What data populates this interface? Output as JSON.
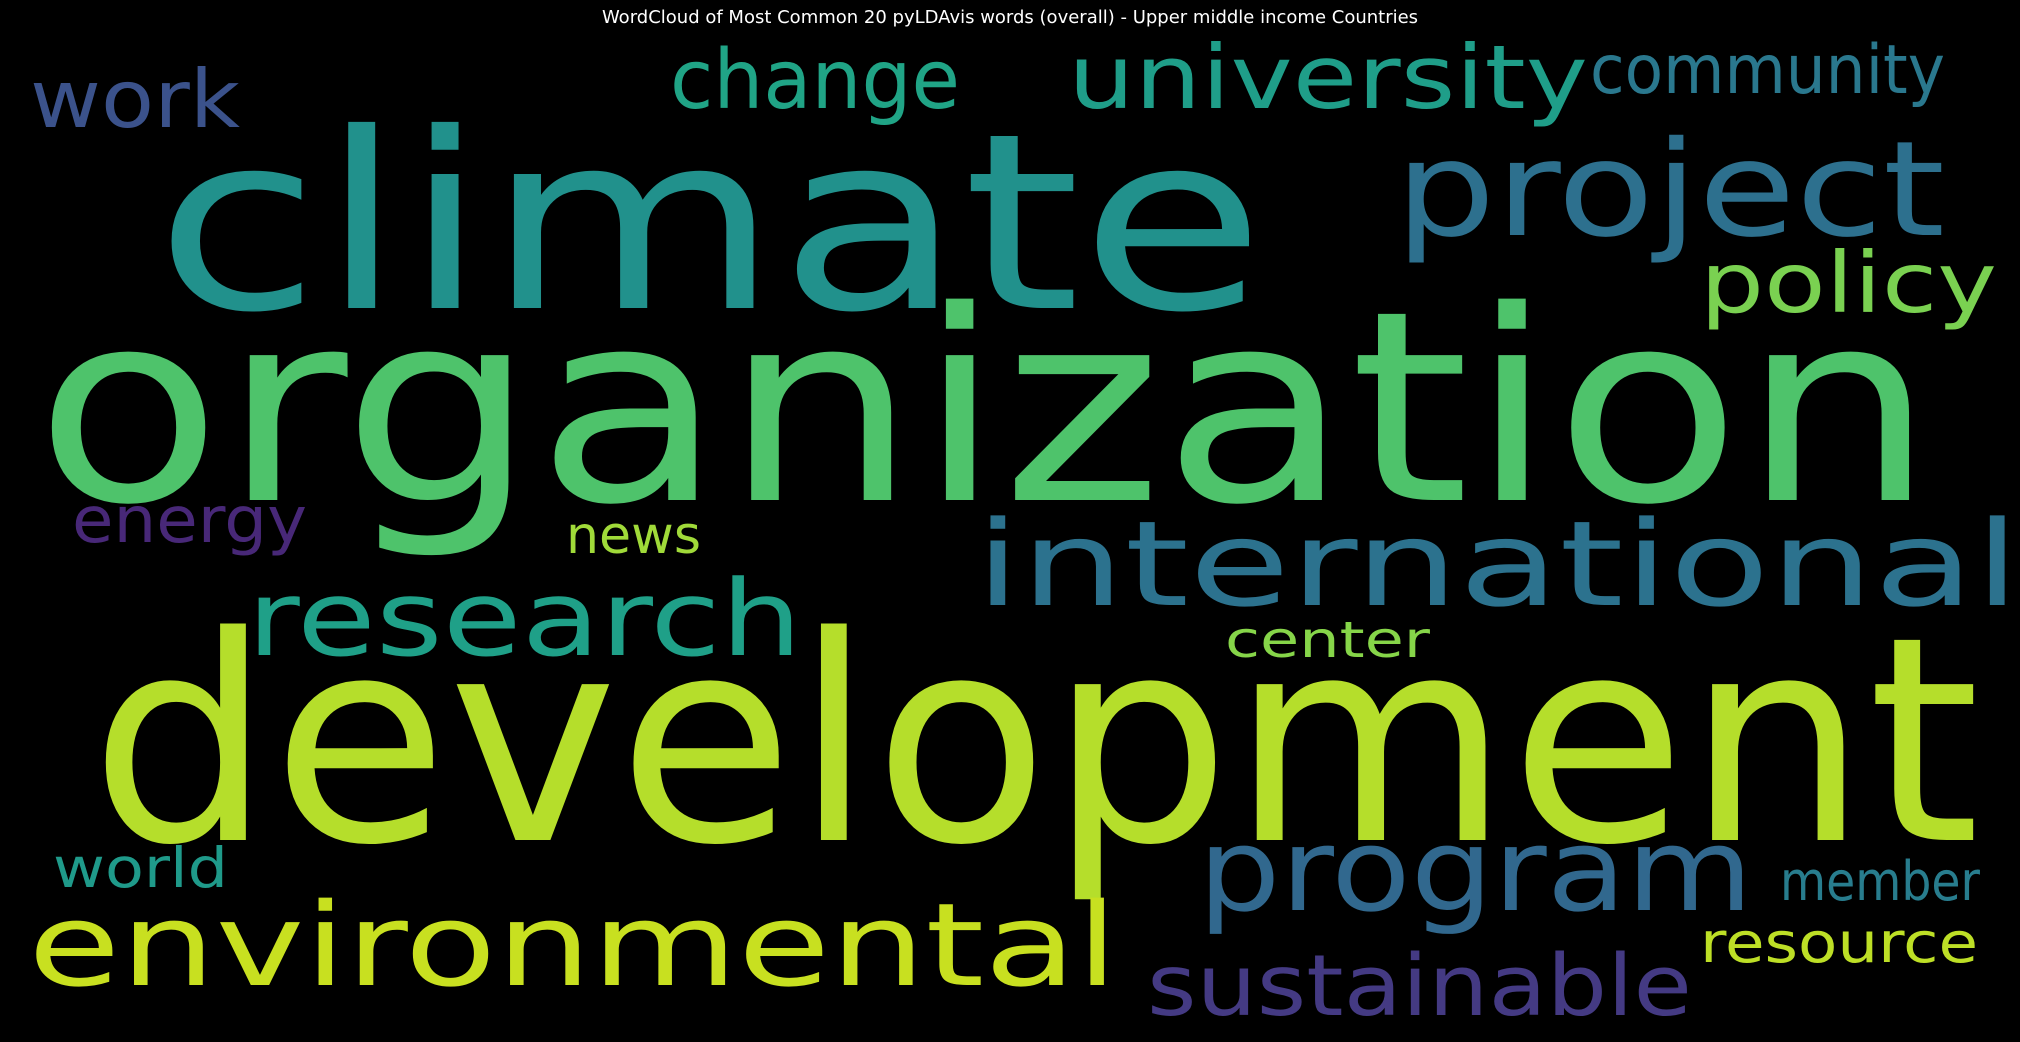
{
  "chart": {
    "title": "WordCloud of Most Common 20 pyLDAvis words (overall) - Upper middle income Countries"
  },
  "chart_data": {
    "type": "wordcloud",
    "title": "WordCloud of Most Common 20 pyLDAvis words (overall) - Upper middle income Countries",
    "background": "#000000",
    "colormap": "viridis",
    "words": [
      {
        "text": "organization",
        "weight": 1.0,
        "color": "#4ec36b"
      },
      {
        "text": "development",
        "weight": 0.98,
        "color": "#b5de2b"
      },
      {
        "text": "climate",
        "weight": 0.78,
        "color": "#21918c"
      },
      {
        "text": "international",
        "weight": 0.44,
        "color": "#2c728e"
      },
      {
        "text": "environmental",
        "weight": 0.42,
        "color": "#c8e020"
      },
      {
        "text": "program",
        "weight": 0.42,
        "color": "#31688e"
      },
      {
        "text": "project",
        "weight": 0.4,
        "color": "#2d708e"
      },
      {
        "text": "research",
        "weight": 0.36,
        "color": "#1fa088"
      },
      {
        "text": "university",
        "weight": 0.28,
        "color": "#1f9e89"
      },
      {
        "text": "sustainable",
        "weight": 0.27,
        "color": "#443a83"
      },
      {
        "text": "change",
        "weight": 0.26,
        "color": "#20a486"
      },
      {
        "text": "policy",
        "weight": 0.26,
        "color": "#7ad151"
      },
      {
        "text": "work",
        "weight": 0.25,
        "color": "#3b528b"
      },
      {
        "text": "community",
        "weight": 0.24,
        "color": "#2a788e"
      },
      {
        "text": "energy",
        "weight": 0.21,
        "color": "#482878"
      },
      {
        "text": "resource",
        "weight": 0.2,
        "color": "#bddf26"
      },
      {
        "text": "member",
        "weight": 0.19,
        "color": "#287d8e"
      },
      {
        "text": "world",
        "weight": 0.18,
        "color": "#1f9a8a"
      },
      {
        "text": "news",
        "weight": 0.17,
        "color": "#a0da39"
      },
      {
        "text": "center",
        "weight": 0.17,
        "color": "#86d549"
      }
    ]
  }
}
